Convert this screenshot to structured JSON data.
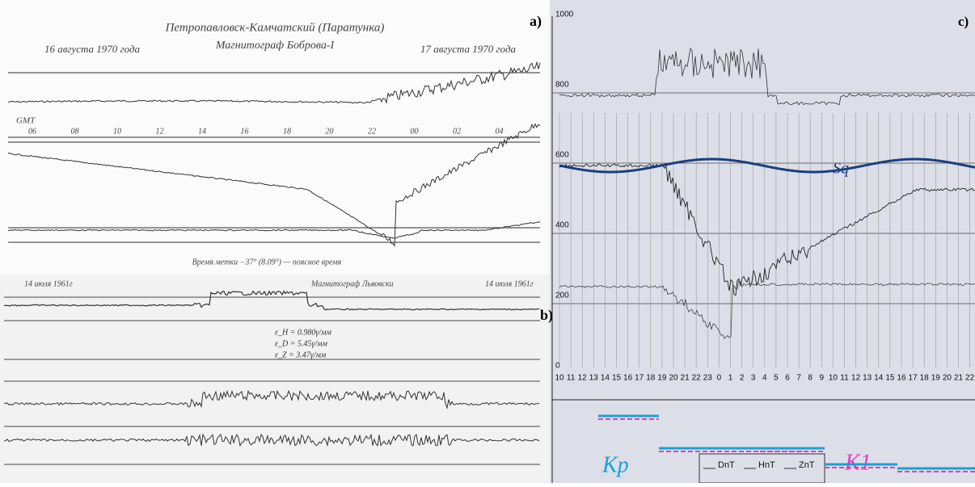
{
  "panel_a": {
    "title": "Петропавловск-Камчатский (Паратунка)",
    "subtitle": "Магнитограф Боброва-I",
    "date_left": "16 августа 1970 года",
    "date_right": "17 августа 1970 года",
    "label": "a)",
    "gmt": "GMT",
    "hours": [
      "06",
      "08",
      "10",
      "12",
      "14",
      "16",
      "18",
      "20",
      "22",
      "00",
      "02",
      "04"
    ],
    "footer": "Время метки −37° (8.09°) — поясное время"
  },
  "panel_b": {
    "label": "b)",
    "date_left": "14 июля 1961г",
    "station": "Магнитограф Львовски",
    "date_right": "14 июля 1961г",
    "constants": [
      "ε_H = 0.980γ/мм",
      "ε_D = 5.45γ/мм",
      "ε_Z = 3.47γ/мм"
    ]
  },
  "panel_c": {
    "label": "c)",
    "yticks": [
      "1000",
      "800",
      "600",
      "400",
      "200",
      "0"
    ],
    "hours": [
      "10",
      "11",
      "12",
      "13",
      "14",
      "15",
      "16",
      "17",
      "18",
      "19",
      "20",
      "21",
      "22",
      "23",
      "0",
      "1",
      "2",
      "3",
      "4",
      "5",
      "6",
      "7",
      "8",
      "9",
      "10",
      "11",
      "12",
      "13",
      "14",
      "15",
      "16",
      "17",
      "18",
      "19",
      "20",
      "21",
      "22"
    ],
    "sq": "Sq",
    "kp": "Kp",
    "k1": "K1",
    "legend": [
      "DnT",
      "HnT",
      "ZnT"
    ]
  }
}
